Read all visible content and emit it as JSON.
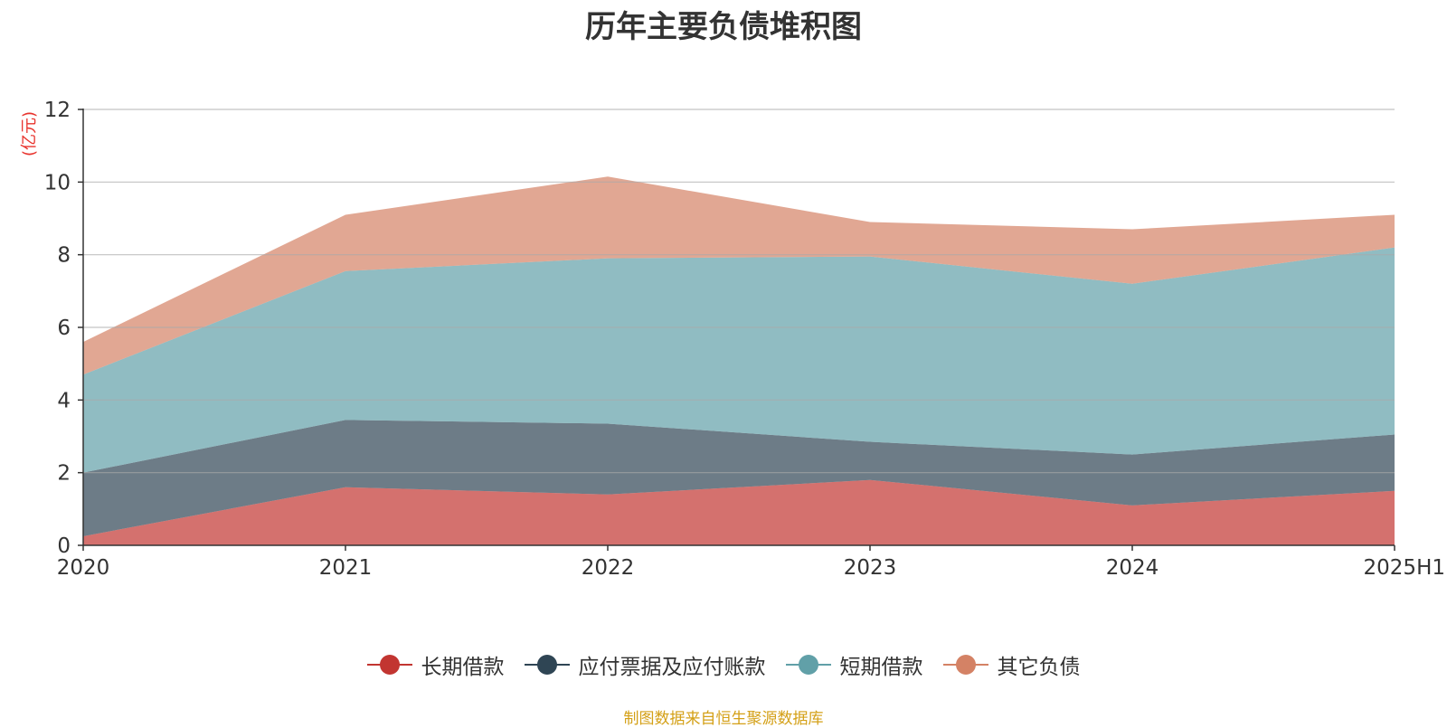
{
  "chart_data": {
    "type": "area",
    "stacked": true,
    "title": "历年主要负债堆积图",
    "ylabel": "(亿元)",
    "xlabel": "",
    "categories": [
      "2020",
      "2021",
      "2022",
      "2023",
      "2024",
      "2025H1"
    ],
    "ylim": [
      0,
      12
    ],
    "yticks": [
      0,
      2,
      4,
      6,
      8,
      10,
      12
    ],
    "grid": true,
    "legend_position": "bottom",
    "series": [
      {
        "name": "长期借款",
        "color": "#c23531",
        "values": [
          0.25,
          1.6,
          1.4,
          1.8,
          1.1,
          1.5
        ]
      },
      {
        "name": "应付票据及应付账款",
        "color": "#2f4554",
        "values": [
          1.75,
          1.85,
          1.95,
          1.05,
          1.4,
          1.55
        ]
      },
      {
        "name": "短期借款",
        "color": "#61a0a8",
        "values": [
          2.7,
          4.1,
          4.55,
          5.1,
          4.7,
          5.15
        ]
      },
      {
        "name": "其它负债",
        "color": "#d48265",
        "values": [
          0.9,
          1.55,
          2.25,
          0.95,
          1.5,
          0.9
        ]
      }
    ]
  },
  "footer": {
    "source": "制图数据来自恒生聚源数据库"
  }
}
